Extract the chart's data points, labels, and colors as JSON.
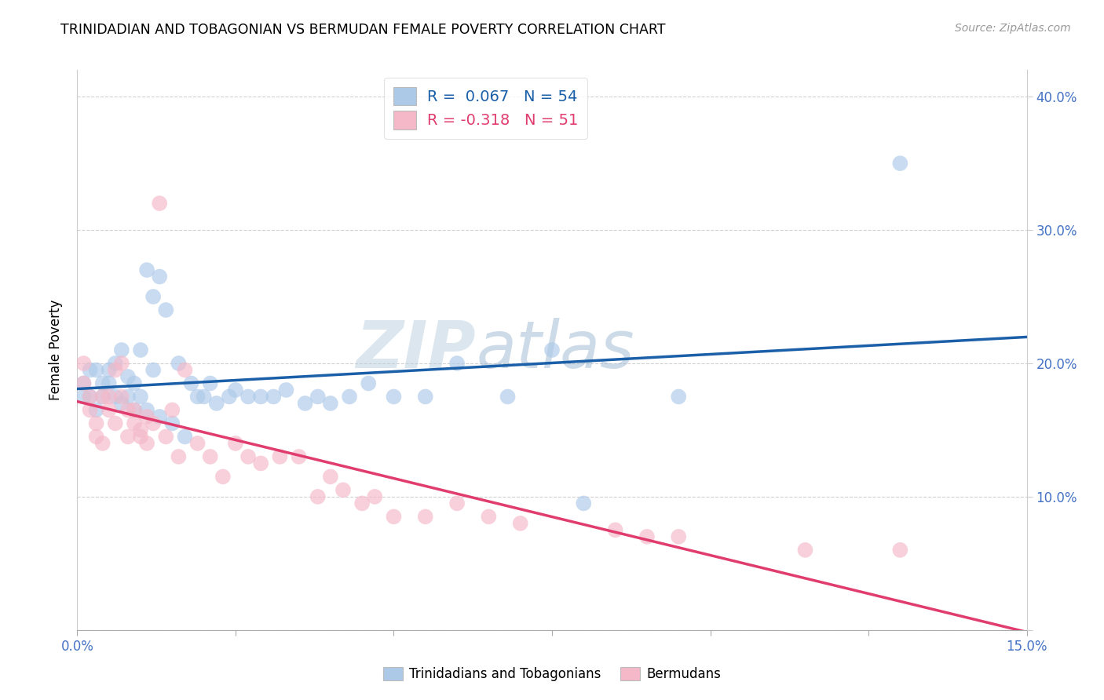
{
  "title": "TRINIDADIAN AND TOBAGONIAN VS BERMUDAN FEMALE POVERTY CORRELATION CHART",
  "source": "Source: ZipAtlas.com",
  "ylabel": "Female Poverty",
  "xlim": [
    0.0,
    0.15
  ],
  "ylim": [
    0.0,
    0.42
  ],
  "xticks": [
    0.0,
    0.025,
    0.05,
    0.075,
    0.1,
    0.125,
    0.15
  ],
  "xticklabels": [
    "0.0%",
    "",
    "",
    "",
    "",
    "",
    "15.0%"
  ],
  "yticks": [
    0.0,
    0.1,
    0.2,
    0.3,
    0.4
  ],
  "yticklabels_right": [
    "",
    "10.0%",
    "20.0%",
    "30.0%",
    "40.0%"
  ],
  "blue_R": "0.067",
  "blue_N": "54",
  "pink_R": "-0.318",
  "pink_N": "51",
  "legend_label_blue": "Trinidadians and Tobagonians",
  "legend_label_pink": "Bermudans",
  "blue_color": "#adc9e8",
  "pink_color": "#f4b8c8",
  "blue_line_color": "#1a5fa8",
  "pink_line_color": "#e03c6e",
  "watermark_zip": "ZIP",
  "watermark_atlas": "atlas",
  "blue_points_x": [
    0.001,
    0.001,
    0.002,
    0.002,
    0.003,
    0.003,
    0.004,
    0.004,
    0.005,
    0.005,
    0.006,
    0.006,
    0.007,
    0.007,
    0.008,
    0.008,
    0.009,
    0.009,
    0.01,
    0.01,
    0.011,
    0.011,
    0.012,
    0.012,
    0.013,
    0.013,
    0.014,
    0.015,
    0.016,
    0.017,
    0.018,
    0.019,
    0.02,
    0.021,
    0.022,
    0.024,
    0.025,
    0.027,
    0.029,
    0.031,
    0.033,
    0.036,
    0.038,
    0.04,
    0.043,
    0.046,
    0.05,
    0.055,
    0.06,
    0.068,
    0.075,
    0.08,
    0.095,
    0.13
  ],
  "blue_points_y": [
    0.175,
    0.185,
    0.195,
    0.175,
    0.165,
    0.195,
    0.185,
    0.175,
    0.185,
    0.195,
    0.175,
    0.2,
    0.21,
    0.17,
    0.19,
    0.175,
    0.165,
    0.185,
    0.175,
    0.21,
    0.165,
    0.27,
    0.25,
    0.195,
    0.265,
    0.16,
    0.24,
    0.155,
    0.2,
    0.145,
    0.185,
    0.175,
    0.175,
    0.185,
    0.17,
    0.175,
    0.18,
    0.175,
    0.175,
    0.175,
    0.18,
    0.17,
    0.175,
    0.17,
    0.175,
    0.185,
    0.175,
    0.175,
    0.2,
    0.175,
    0.21,
    0.095,
    0.175,
    0.35
  ],
  "pink_points_x": [
    0.001,
    0.001,
    0.002,
    0.002,
    0.003,
    0.003,
    0.004,
    0.004,
    0.005,
    0.005,
    0.006,
    0.006,
    0.007,
    0.007,
    0.008,
    0.008,
    0.009,
    0.009,
    0.01,
    0.01,
    0.011,
    0.011,
    0.012,
    0.013,
    0.014,
    0.015,
    0.016,
    0.017,
    0.019,
    0.021,
    0.023,
    0.025,
    0.027,
    0.029,
    0.032,
    0.035,
    0.038,
    0.04,
    0.042,
    0.045,
    0.047,
    0.05,
    0.055,
    0.06,
    0.065,
    0.07,
    0.085,
    0.09,
    0.095,
    0.115,
    0.13
  ],
  "pink_points_y": [
    0.2,
    0.185,
    0.175,
    0.165,
    0.155,
    0.145,
    0.175,
    0.14,
    0.175,
    0.165,
    0.155,
    0.195,
    0.2,
    0.175,
    0.165,
    0.145,
    0.155,
    0.165,
    0.145,
    0.15,
    0.16,
    0.14,
    0.155,
    0.32,
    0.145,
    0.165,
    0.13,
    0.195,
    0.14,
    0.13,
    0.115,
    0.14,
    0.13,
    0.125,
    0.13,
    0.13,
    0.1,
    0.115,
    0.105,
    0.095,
    0.1,
    0.085,
    0.085,
    0.095,
    0.085,
    0.08,
    0.075,
    0.07,
    0.07,
    0.06,
    0.06
  ]
}
